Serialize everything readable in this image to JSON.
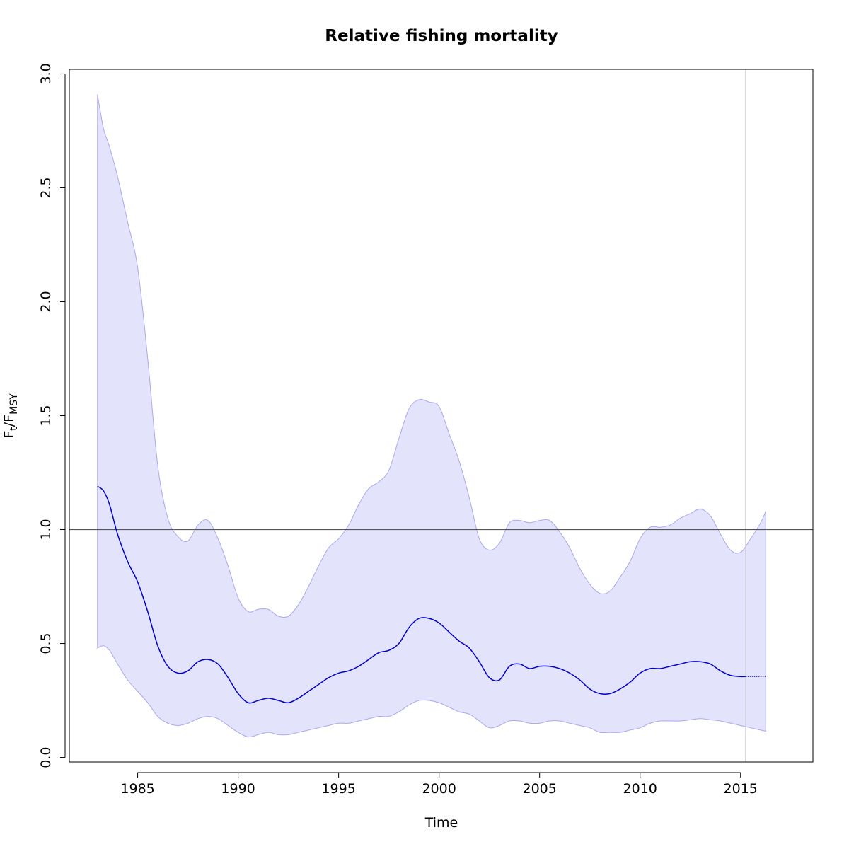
{
  "chart_data": {
    "type": "area",
    "title": "Relative fishing mortality",
    "xlabel": "Time",
    "ylabel": {
      "main": "F",
      "sub1": "t",
      "sep": "/F",
      "sub2": "MSY"
    },
    "xlim": [
      1981.6,
      2018.6
    ],
    "ylim": [
      -0.02,
      3.02
    ],
    "x_ticks": [
      1985,
      1990,
      1995,
      2000,
      2005,
      2010,
      2015
    ],
    "x_tick_labels": [
      "1985",
      "1990",
      "1995",
      "2000",
      "2005",
      "2010",
      "2015"
    ],
    "y_ticks": [
      0,
      0.5,
      1,
      1.5,
      2,
      2.5,
      3
    ],
    "y_tick_labels": [
      "0.0",
      "0.5",
      "1.0",
      "1.5",
      "2.0",
      "2.5",
      "3.0"
    ],
    "reference_line_y": 1.0,
    "last_data_year": 2015.25,
    "colors": {
      "estimate": "#0000cc",
      "band_fill": "#e3e3fb",
      "band_edge": "#a8a8ee",
      "reference": "#555555",
      "vline": "#cfcfcf",
      "axis": "#000000"
    },
    "series": [
      {
        "role": "estimate",
        "x": [
          1983.0,
          1983.3,
          1983.6,
          1984.0,
          1984.5,
          1985.0,
          1985.5,
          1986.0,
          1986.5,
          1987.0,
          1987.5,
          1988.0,
          1988.5,
          1989.0,
          1989.5,
          1990.0,
          1990.5,
          1991.0,
          1991.5,
          1992.0,
          1992.5,
          1993.0,
          1993.5,
          1994.0,
          1994.5,
          1995.0,
          1995.5,
          1996.0,
          1996.5,
          1997.0,
          1997.5,
          1998.0,
          1998.5,
          1999.0,
          1999.5,
          2000.0,
          2000.5,
          2001.0,
          2001.5,
          2002.0,
          2002.5,
          2003.0,
          2003.5,
          2004.0,
          2004.5,
          2005.0,
          2005.5,
          2006.0,
          2006.5,
          2007.0,
          2007.5,
          2008.0,
          2008.5,
          2009.0,
          2009.5,
          2010.0,
          2010.5,
          2011.0,
          2011.5,
          2012.0,
          2012.5,
          2013.0,
          2013.5,
          2014.0,
          2014.5,
          2015.0,
          2015.25
        ],
        "y": [
          1.19,
          1.17,
          1.11,
          0.98,
          0.86,
          0.77,
          0.64,
          0.49,
          0.4,
          0.37,
          0.38,
          0.42,
          0.43,
          0.41,
          0.35,
          0.28,
          0.24,
          0.25,
          0.26,
          0.25,
          0.24,
          0.26,
          0.29,
          0.32,
          0.35,
          0.37,
          0.38,
          0.4,
          0.43,
          0.46,
          0.47,
          0.5,
          0.57,
          0.61,
          0.61,
          0.59,
          0.55,
          0.51,
          0.48,
          0.42,
          0.35,
          0.34,
          0.4,
          0.41,
          0.39,
          0.4,
          0.4,
          0.39,
          0.37,
          0.34,
          0.3,
          0.28,
          0.28,
          0.3,
          0.33,
          0.37,
          0.39,
          0.39,
          0.4,
          0.41,
          0.42,
          0.42,
          0.41,
          0.38,
          0.36,
          0.355,
          0.355
        ]
      },
      {
        "role": "forecast",
        "x": [
          2015.25,
          2016.25
        ],
        "y": [
          0.355,
          0.355
        ]
      },
      {
        "role": "ci_upper",
        "x": [
          1983.0,
          1983.3,
          1983.6,
          1984.0,
          1984.5,
          1985.0,
          1985.5,
          1986.0,
          1986.5,
          1987.0,
          1987.5,
          1988.0,
          1988.5,
          1989.0,
          1989.5,
          1990.0,
          1990.5,
          1991.0,
          1991.5,
          1992.0,
          1992.5,
          1993.0,
          1993.5,
          1994.0,
          1994.5,
          1995.0,
          1995.5,
          1996.0,
          1996.5,
          1997.0,
          1997.5,
          1998.0,
          1998.5,
          1999.0,
          1999.5,
          2000.0,
          2000.5,
          2001.0,
          2001.5,
          2002.0,
          2002.5,
          2003.0,
          2003.5,
          2004.0,
          2004.5,
          2005.0,
          2005.5,
          2006.0,
          2006.5,
          2007.0,
          2007.5,
          2008.0,
          2008.5,
          2009.0,
          2009.5,
          2010.0,
          2010.5,
          2011.0,
          2011.5,
          2012.0,
          2012.5,
          2013.0,
          2013.5,
          2014.0,
          2014.5,
          2015.0,
          2015.5,
          2016.0,
          2016.25
        ],
        "y": [
          2.91,
          2.76,
          2.68,
          2.55,
          2.35,
          2.15,
          1.75,
          1.28,
          1.05,
          0.97,
          0.95,
          1.02,
          1.04,
          0.96,
          0.84,
          0.7,
          0.64,
          0.65,
          0.65,
          0.62,
          0.62,
          0.67,
          0.75,
          0.84,
          0.92,
          0.96,
          1.02,
          1.11,
          1.18,
          1.21,
          1.26,
          1.4,
          1.53,
          1.57,
          1.56,
          1.54,
          1.42,
          1.3,
          1.14,
          0.96,
          0.91,
          0.94,
          1.03,
          1.04,
          1.03,
          1.04,
          1.04,
          0.99,
          0.92,
          0.83,
          0.76,
          0.72,
          0.73,
          0.79,
          0.86,
          0.96,
          1.01,
          1.01,
          1.02,
          1.05,
          1.07,
          1.09,
          1.06,
          0.98,
          0.91,
          0.9,
          0.96,
          1.03,
          1.08
        ]
      },
      {
        "role": "ci_lower",
        "x": [
          1983.0,
          1983.3,
          1983.6,
          1984.0,
          1984.5,
          1985.0,
          1985.5,
          1986.0,
          1986.5,
          1987.0,
          1987.5,
          1988.0,
          1988.5,
          1989.0,
          1989.5,
          1990.0,
          1990.5,
          1991.0,
          1991.5,
          1992.0,
          1992.5,
          1993.0,
          1993.5,
          1994.0,
          1994.5,
          1995.0,
          1995.5,
          1996.0,
          1996.5,
          1997.0,
          1997.5,
          1998.0,
          1998.5,
          1999.0,
          1999.5,
          2000.0,
          2000.5,
          2001.0,
          2001.5,
          2002.0,
          2002.5,
          2003.0,
          2003.5,
          2004.0,
          2004.5,
          2005.0,
          2005.5,
          2006.0,
          2006.5,
          2007.0,
          2007.5,
          2008.0,
          2008.5,
          2009.0,
          2009.5,
          2010.0,
          2010.5,
          2011.0,
          2011.5,
          2012.0,
          2012.5,
          2013.0,
          2013.5,
          2014.0,
          2014.5,
          2015.0,
          2015.5,
          2016.0,
          2016.25
        ],
        "y": [
          0.48,
          0.49,
          0.47,
          0.41,
          0.34,
          0.29,
          0.24,
          0.18,
          0.15,
          0.14,
          0.15,
          0.17,
          0.18,
          0.17,
          0.14,
          0.11,
          0.09,
          0.1,
          0.11,
          0.1,
          0.1,
          0.11,
          0.12,
          0.13,
          0.14,
          0.15,
          0.15,
          0.16,
          0.17,
          0.18,
          0.18,
          0.2,
          0.23,
          0.25,
          0.25,
          0.24,
          0.22,
          0.2,
          0.19,
          0.16,
          0.13,
          0.14,
          0.16,
          0.16,
          0.15,
          0.15,
          0.16,
          0.16,
          0.15,
          0.14,
          0.13,
          0.11,
          0.11,
          0.11,
          0.12,
          0.13,
          0.15,
          0.16,
          0.16,
          0.16,
          0.165,
          0.17,
          0.165,
          0.16,
          0.15,
          0.14,
          0.13,
          0.12,
          0.115
        ]
      }
    ]
  }
}
